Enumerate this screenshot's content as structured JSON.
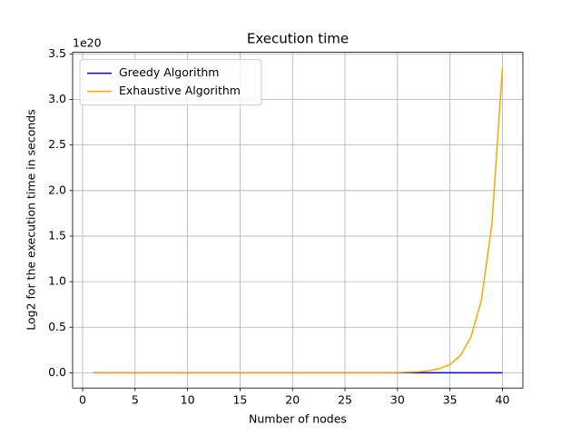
{
  "chart_data": {
    "type": "line",
    "title": "Execution time",
    "xlabel": "Number of nodes",
    "ylabel": "Log2 for the execution time in seconds",
    "y_offset_text": "1e20",
    "x": [
      1,
      2,
      3,
      4,
      5,
      6,
      7,
      8,
      9,
      10,
      11,
      12,
      13,
      14,
      15,
      16,
      17,
      18,
      19,
      20,
      21,
      22,
      23,
      24,
      25,
      26,
      27,
      28,
      29,
      30,
      31,
      32,
      33,
      34,
      35,
      36,
      37,
      38,
      39,
      40
    ],
    "series": [
      {
        "name": "Greedy Algorithm",
        "color": "#0000ff",
        "values": [
          0,
          0,
          0,
          0,
          0,
          0,
          0,
          0,
          0,
          0,
          0,
          0,
          0,
          0,
          0,
          0,
          0,
          0,
          0,
          0,
          0,
          0,
          0,
          0,
          0,
          0,
          0,
          0,
          0,
          0,
          0,
          0,
          0,
          0,
          0,
          0,
          0,
          0,
          0,
          0
        ]
      },
      {
        "name": "Exhaustive Algorithm",
        "color": "#ffa500",
        "values": [
          0,
          0,
          0,
          0,
          0,
          0,
          0,
          0,
          0,
          0,
          0,
          0,
          0,
          0,
          0,
          0,
          0,
          0,
          0,
          0,
          0,
          0,
          0,
          0,
          0,
          0,
          0,
          0,
          0,
          0.003,
          0.006,
          0.011,
          0.022,
          0.045,
          0.09,
          0.19,
          0.39,
          0.8,
          1.63,
          3.35
        ]
      }
    ],
    "xlim": [
      -0.95,
      41.95
    ],
    "xticks": [
      0,
      5,
      10,
      15,
      20,
      25,
      30,
      35,
      40
    ],
    "ylim": [
      -0.1675,
      3.5175
    ],
    "yticks": [
      {
        "value": 0,
        "label": "0.0"
      },
      {
        "value": 0.5,
        "label": "0.5"
      },
      {
        "value": 1,
        "label": "1.0"
      },
      {
        "value": 1.5,
        "label": "1.5"
      },
      {
        "value": 2,
        "label": "2.0"
      },
      {
        "value": 2.5,
        "label": "2.5"
      },
      {
        "value": 3,
        "label": "3.0"
      },
      {
        "value": 3.5,
        "label": "3.5"
      }
    ],
    "grid": true,
    "legend": "upper-left"
  }
}
